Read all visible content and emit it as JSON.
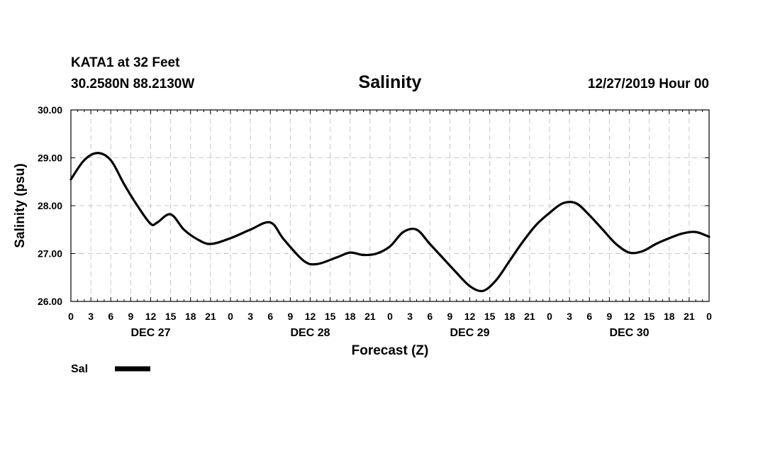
{
  "header": {
    "station": "KATA1 at 32 Feet",
    "coords": "30.2580N 88.2130W",
    "datetime": "12/27/2019 Hour 00"
  },
  "chart_data": {
    "type": "line",
    "title": "Salinity",
    "xlabel": "Forecast (Z)",
    "ylabel": "Salinity (psu)",
    "ylim": [
      26.0,
      30.0
    ],
    "yticks": [
      "26.00",
      "27.00",
      "28.00",
      "29.00",
      "30.00"
    ],
    "xlim_hours": [
      0,
      96
    ],
    "xtick_labels": [
      "0",
      "3",
      "6",
      "9",
      "12",
      "15",
      "18",
      "21",
      "0",
      "3",
      "6",
      "9",
      "12",
      "15",
      "18",
      "21",
      "0",
      "3",
      "6",
      "9",
      "12",
      "15",
      "18",
      "21",
      "0",
      "3",
      "6",
      "9",
      "12",
      "15",
      "18",
      "21",
      "0"
    ],
    "day_labels": [
      {
        "label": "DEC 27",
        "hour": 12
      },
      {
        "label": "DEC 28",
        "hour": 36
      },
      {
        "label": "DEC 29",
        "hour": 60
      },
      {
        "label": "DEC 30",
        "hour": 84
      }
    ],
    "grid": true,
    "legend_position": "bottom-left",
    "series": [
      {
        "name": "Sal",
        "color": "#000000",
        "x": [
          0,
          2,
          4,
          6,
          8,
          10,
          12,
          13,
          15,
          17,
          19,
          21,
          24,
          27,
          30,
          32,
          35,
          37,
          40,
          42,
          44,
          46,
          48,
          50,
          52,
          54,
          56,
          58,
          60,
          62,
          64,
          66,
          68,
          70,
          72,
          74,
          76,
          78,
          80,
          82,
          84,
          86,
          88,
          90,
          92,
          94,
          96
        ],
        "values": [
          28.55,
          28.95,
          29.1,
          28.95,
          28.45,
          28.0,
          27.62,
          27.65,
          27.82,
          27.5,
          27.3,
          27.2,
          27.32,
          27.5,
          27.65,
          27.3,
          26.85,
          26.78,
          26.92,
          27.02,
          26.97,
          27.0,
          27.15,
          27.45,
          27.5,
          27.2,
          26.9,
          26.6,
          26.32,
          26.22,
          26.45,
          26.85,
          27.25,
          27.6,
          27.85,
          28.05,
          28.05,
          27.8,
          27.5,
          27.2,
          27.02,
          27.05,
          27.2,
          27.32,
          27.42,
          27.45,
          27.35
        ]
      }
    ]
  }
}
